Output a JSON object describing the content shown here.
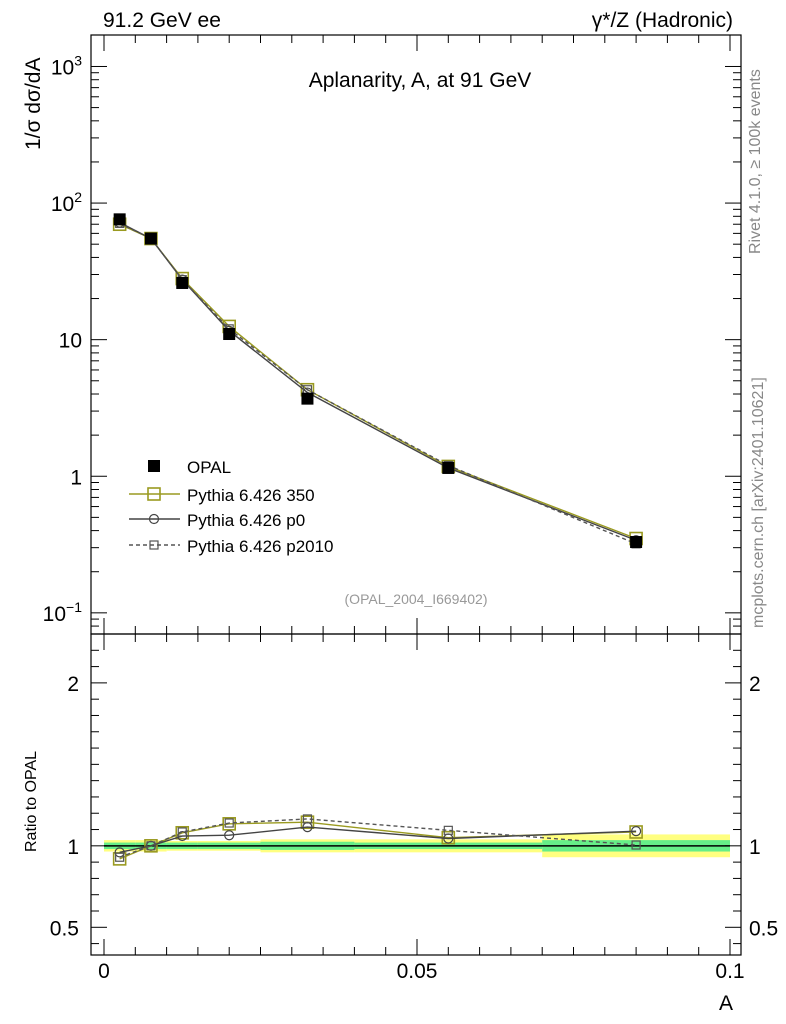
{
  "header": {
    "left": "91.2 GeV ee",
    "right": "γ*/Z (Hadronic)"
  },
  "side_text": {
    "top": "Rivet 4.1.0, ≥ 100k events",
    "bottom": "mcplots.cern.ch [arXiv:2401.10621]"
  },
  "chart_data": [
    {
      "type": "line",
      "panel": "main",
      "title": "Aplanarity, A, at 91 GeV",
      "analysis_label": "(OPAL_2004_I669402)",
      "ylabel": "1/σ  dσ/dA",
      "yscale": "log",
      "xlim": [
        0,
        0.1
      ],
      "ylim": [
        0.07,
        1700
      ],
      "yticks": [
        {
          "value": 1000,
          "base": "10",
          "exp": "3"
        },
        {
          "value": 100,
          "base": "10",
          "exp": "2"
        },
        {
          "value": 10,
          "base": "10",
          "exp": ""
        },
        {
          "value": 1,
          "base": "1",
          "exp": ""
        },
        {
          "value": 0.1,
          "base": "10",
          "exp": "−1"
        }
      ],
      "x": [
        0.0025,
        0.0075,
        0.0125,
        0.02,
        0.0325,
        0.055,
        0.085
      ],
      "series": [
        {
          "name": "OPAL",
          "style": "data",
          "color": "#000000",
          "values": [
            76,
            55,
            26,
            11,
            3.7,
            1.15,
            0.33
          ]
        },
        {
          "name": "Pythia 6.426 350",
          "style": "solid",
          "marker": "square-open-large",
          "color": "#9a9a20",
          "values": [
            70,
            55,
            28,
            12.5,
            4.3,
            1.18,
            0.35
          ]
        },
        {
          "name": "Pythia 6.426 p0",
          "style": "solid",
          "marker": "circle-open",
          "color": "#444444",
          "values": [
            72,
            55,
            27.5,
            11.6,
            4.1,
            1.15,
            0.34
          ]
        },
        {
          "name": "Pythia 6.426 p2010",
          "style": "dashed",
          "marker": "square-open-small",
          "color": "#555555",
          "values": [
            71,
            55,
            27.5,
            12.0,
            4.3,
            1.2,
            0.32
          ]
        }
      ]
    },
    {
      "type": "line",
      "panel": "ratio",
      "ylabel": "Ratio to OPAL",
      "xlabel": "A",
      "xlim": [
        0,
        0.1
      ],
      "ylim": [
        0.33,
        2.3
      ],
      "xticks": [
        {
          "value": 0,
          "label": "0"
        },
        {
          "value": 0.05,
          "label": "0.05"
        },
        {
          "value": 0.1,
          "label": "0.1"
        }
      ],
      "yticks": [
        {
          "value": 2,
          "label": "2"
        },
        {
          "value": 1,
          "label": "1"
        },
        {
          "value": 0.5,
          "label": "0.5"
        }
      ],
      "bins": [
        [
          0,
          0.005
        ],
        [
          0.005,
          0.01
        ],
        [
          0.01,
          0.015
        ],
        [
          0.015,
          0.025
        ],
        [
          0.025,
          0.04
        ],
        [
          0.04,
          0.07
        ],
        [
          0.07,
          0.1
        ]
      ],
      "band_inner": [
        [
          0.98,
          1.02
        ],
        [
          0.98,
          1.02
        ],
        [
          0.98,
          1.02
        ],
        [
          0.98,
          1.02
        ],
        [
          0.975,
          1.025
        ],
        [
          0.98,
          1.02
        ],
        [
          0.965,
          1.035
        ]
      ],
      "band_outer": [
        [
          0.965,
          1.035
        ],
        [
          0.965,
          1.035
        ],
        [
          0.97,
          1.03
        ],
        [
          0.97,
          1.03
        ],
        [
          0.96,
          1.04
        ],
        [
          0.96,
          1.04
        ],
        [
          0.93,
          1.07
        ]
      ],
      "x": [
        0.0025,
        0.0075,
        0.0125,
        0.02,
        0.0325,
        0.055,
        0.085
      ],
      "series": [
        {
          "name": "Pythia 6.426 350",
          "style": "solid",
          "marker": "square-open-large",
          "color": "#9a9a20",
          "values": [
            0.92,
            1.0,
            1.08,
            1.135,
            1.145,
            1.05,
            1.085
          ]
        },
        {
          "name": "Pythia 6.426 p0",
          "style": "solid",
          "marker": "circle-open",
          "color": "#444444",
          "values": [
            0.96,
            1.0,
            1.06,
            1.065,
            1.115,
            1.045,
            1.09
          ]
        },
        {
          "name": "Pythia 6.426 p2010",
          "style": "dashed",
          "marker": "square-open-small",
          "color": "#555555",
          "values": [
            0.93,
            1.0,
            1.085,
            1.14,
            1.165,
            1.095,
            1.005
          ]
        }
      ]
    }
  ]
}
